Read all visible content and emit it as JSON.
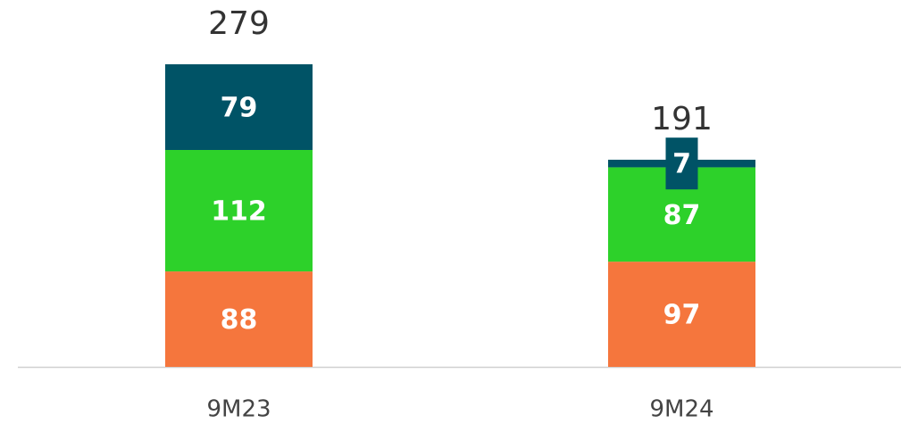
{
  "chart_data": {
    "type": "stacked_bar",
    "categories": [
      "9M23",
      "9M24"
    ],
    "series": [
      {
        "color": "#f5763d",
        "values": [
          88,
          97
        ]
      },
      {
        "color": "#2dd12a",
        "values": [
          112,
          87
        ]
      },
      {
        "color": "#005366",
        "values": [
          79,
          7
        ]
      }
    ],
    "totals": [
      279,
      191
    ],
    "ylim": [
      0,
      300
    ]
  }
}
